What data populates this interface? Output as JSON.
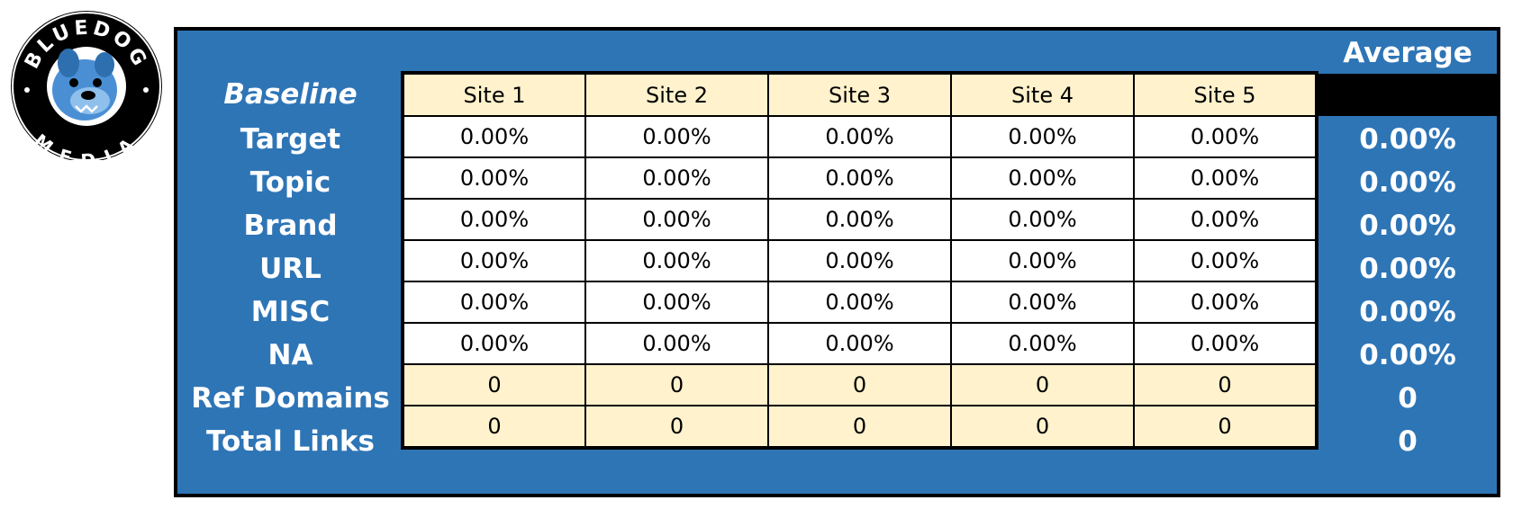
{
  "logo": {
    "top_text": "BLUEDOG",
    "bottom_text": "MEDIA"
  },
  "table": {
    "corner_label": "Baseline",
    "average_label": "Average",
    "columns": [
      "Site 1",
      "Site 2",
      "Site 3",
      "Site 4",
      "Site 5"
    ],
    "rows": [
      {
        "label": "Target",
        "values": [
          "0.00%",
          "0.00%",
          "0.00%",
          "0.00%",
          "0.00%"
        ],
        "average": "0.00%"
      },
      {
        "label": "Topic",
        "values": [
          "0.00%",
          "0.00%",
          "0.00%",
          "0.00%",
          "0.00%"
        ],
        "average": "0.00%"
      },
      {
        "label": "Brand",
        "values": [
          "0.00%",
          "0.00%",
          "0.00%",
          "0.00%",
          "0.00%"
        ],
        "average": "0.00%"
      },
      {
        "label": "URL",
        "values": [
          "0.00%",
          "0.00%",
          "0.00%",
          "0.00%",
          "0.00%"
        ],
        "average": "0.00%"
      },
      {
        "label": "MISC",
        "values": [
          "0.00%",
          "0.00%",
          "0.00%",
          "0.00%",
          "0.00%"
        ],
        "average": "0.00%"
      },
      {
        "label": "NA",
        "values": [
          "0.00%",
          "0.00%",
          "0.00%",
          "0.00%",
          "0.00%"
        ],
        "average": "0.00%"
      },
      {
        "label": "Ref Domains",
        "values": [
          "0",
          "0",
          "0",
          "0",
          "0"
        ],
        "average": "0"
      },
      {
        "label": "Total Links",
        "values": [
          "0",
          "0",
          "0",
          "0",
          "0"
        ],
        "average": "0"
      }
    ]
  },
  "colors": {
    "panel": "#2e75b6",
    "header_fill": "#fff2cc",
    "border": "#000000",
    "label_text": "#ffffff"
  }
}
